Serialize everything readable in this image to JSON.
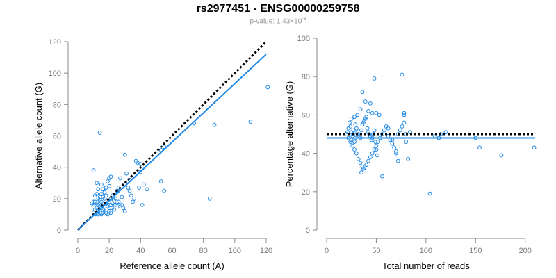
{
  "title": "rs2977451 - ENSG00000259758",
  "subtitle": {
    "prefix": "p-value: 1.43×10",
    "exponent": "-3"
  },
  "colors": {
    "point": "#1E88E5",
    "fit_line": "#1E88E5",
    "reference_line": "#000000",
    "axis": "#888888"
  },
  "chart_data": [
    {
      "type": "scatter",
      "xlabel": "Reference allele count (A)",
      "ylabel": "Alternative allele count (G)",
      "xlim": [
        0,
        120
      ],
      "ylim": [
        0,
        120
      ],
      "x_ticks": [
        0,
        20,
        40,
        60,
        80,
        100,
        120
      ],
      "y_ticks": [
        0,
        20,
        40,
        60,
        80,
        100,
        120
      ],
      "lines": [
        {
          "style": "dotted",
          "color": "#000000",
          "x": [
            0,
            120
          ],
          "y": [
            0,
            120
          ]
        },
        {
          "style": "solid",
          "color": "#1E88E5",
          "x": [
            0,
            120
          ],
          "y": [
            0,
            112
          ]
        }
      ],
      "points": [
        [
          14,
          62
        ],
        [
          10,
          38
        ],
        [
          121,
          91
        ],
        [
          110,
          69
        ],
        [
          87,
          67
        ],
        [
          84,
          20
        ],
        [
          74,
          68
        ],
        [
          55,
          53
        ],
        [
          53,
          51
        ],
        [
          55,
          25
        ],
        [
          53,
          31
        ],
        [
          41,
          16
        ],
        [
          40,
          42
        ],
        [
          40,
          37
        ],
        [
          38,
          43
        ],
        [
          37,
          44
        ],
        [
          42,
          29
        ],
        [
          39,
          27
        ],
        [
          44,
          26
        ],
        [
          30,
          48
        ],
        [
          31,
          36
        ],
        [
          33,
          32
        ],
        [
          30,
          29
        ],
        [
          32,
          27
        ],
        [
          27,
          33
        ],
        [
          26,
          27
        ],
        [
          25,
          25
        ],
        [
          28,
          21
        ],
        [
          24,
          22
        ],
        [
          20,
          33
        ],
        [
          21,
          34
        ],
        [
          19,
          31
        ],
        [
          20,
          28
        ],
        [
          18,
          27
        ],
        [
          17,
          24
        ],
        [
          16,
          21
        ],
        [
          15,
          23
        ],
        [
          16,
          26
        ],
        [
          14,
          21
        ],
        [
          13,
          20
        ],
        [
          12,
          23
        ],
        [
          11,
          22
        ],
        [
          11,
          18
        ],
        [
          12,
          17
        ],
        [
          13,
          16
        ],
        [
          14,
          15
        ],
        [
          15,
          14
        ],
        [
          16,
          13
        ],
        [
          17,
          12
        ],
        [
          18,
          11
        ],
        [
          19,
          10
        ],
        [
          20,
          12
        ],
        [
          21,
          11
        ],
        [
          22,
          14
        ],
        [
          23,
          13
        ],
        [
          24,
          16
        ],
        [
          22,
          17
        ],
        [
          21,
          16
        ],
        [
          20,
          18
        ],
        [
          19,
          19
        ],
        [
          18,
          17
        ],
        [
          17,
          15
        ],
        [
          16,
          17
        ],
        [
          15,
          18
        ],
        [
          14,
          19
        ],
        [
          13,
          12
        ],
        [
          12,
          14
        ],
        [
          11,
          13
        ],
        [
          10,
          15
        ],
        [
          10,
          11
        ],
        [
          11,
          10
        ],
        [
          12,
          11
        ],
        [
          13,
          10
        ],
        [
          14,
          11
        ],
        [
          15,
          10
        ],
        [
          16,
          11
        ],
        [
          9,
          17
        ],
        [
          10,
          18
        ],
        [
          21,
          20
        ],
        [
          22,
          22
        ],
        [
          23,
          19
        ],
        [
          24,
          20
        ],
        [
          25,
          17
        ],
        [
          26,
          18
        ],
        [
          27,
          15
        ],
        [
          28,
          16
        ],
        [
          29,
          14
        ],
        [
          30,
          12
        ],
        [
          35,
          18
        ],
        [
          36,
          20
        ],
        [
          33,
          25
        ],
        [
          34,
          22
        ],
        [
          18,
          22
        ],
        [
          17,
          20
        ],
        [
          19,
          15
        ],
        [
          20,
          14
        ],
        [
          13,
          26
        ],
        [
          15,
          29
        ],
        [
          12,
          30
        ]
      ]
    },
    {
      "type": "scatter",
      "xlabel": "Total number of reads",
      "ylabel": "Percentage alternative (G)",
      "xlim": [
        0,
        210
      ],
      "ylim": [
        0,
        100
      ],
      "x_ticks": [
        0,
        50,
        100,
        150,
        200
      ],
      "y_ticks": [
        0,
        20,
        40,
        60,
        80,
        100
      ],
      "lines": [
        {
          "style": "dotted",
          "color": "#000000",
          "x": [
            0,
            210
          ],
          "y": [
            50,
            50
          ]
        },
        {
          "style": "solid",
          "color": "#1E88E5",
          "x": [
            0,
            210
          ],
          "y": [
            48,
            48
          ]
        }
      ],
      "points": [
        [
          76,
          81
        ],
        [
          48,
          79
        ],
        [
          36,
          72
        ],
        [
          39,
          67
        ],
        [
          42,
          62
        ],
        [
          44,
          66
        ],
        [
          46,
          61
        ],
        [
          50,
          61
        ],
        [
          53,
          60
        ],
        [
          34,
          63
        ],
        [
          31,
          60
        ],
        [
          28,
          59
        ],
        [
          25,
          58
        ],
        [
          23,
          56
        ],
        [
          22,
          53
        ],
        [
          21,
          51
        ],
        [
          20,
          50
        ],
        [
          22,
          48
        ],
        [
          24,
          46
        ],
        [
          26,
          44
        ],
        [
          28,
          42
        ],
        [
          30,
          40
        ],
        [
          32,
          37
        ],
        [
          34,
          35
        ],
        [
          36,
          33
        ],
        [
          38,
          31
        ],
        [
          35,
          30
        ],
        [
          37,
          32
        ],
        [
          40,
          34
        ],
        [
          42,
          36
        ],
        [
          44,
          38
        ],
        [
          46,
          40
        ],
        [
          48,
          42
        ],
        [
          50,
          44
        ],
        [
          52,
          46
        ],
        [
          54,
          48
        ],
        [
          56,
          50
        ],
        [
          58,
          52
        ],
        [
          60,
          54
        ],
        [
          62,
          49
        ],
        [
          64,
          47
        ],
        [
          66,
          45
        ],
        [
          68,
          43
        ],
        [
          70,
          41
        ],
        [
          72,
          50
        ],
        [
          74,
          52
        ],
        [
          76,
          54
        ],
        [
          78,
          56
        ],
        [
          80,
          50
        ],
        [
          82,
          37
        ],
        [
          84,
          51
        ],
        [
          78,
          60
        ],
        [
          78,
          61
        ],
        [
          80,
          46
        ],
        [
          70,
          40
        ],
        [
          72,
          36
        ],
        [
          56,
          28
        ],
        [
          62,
          53
        ],
        [
          66,
          47
        ],
        [
          30,
          53
        ],
        [
          29,
          55
        ],
        [
          27,
          52
        ],
        [
          26,
          49
        ],
        [
          25,
          47
        ],
        [
          24,
          54
        ],
        [
          25,
          51
        ],
        [
          27,
          50
        ],
        [
          28,
          46
        ],
        [
          29,
          48
        ],
        [
          31,
          51
        ],
        [
          32,
          50
        ],
        [
          33,
          49
        ],
        [
          34,
          48
        ],
        [
          35,
          52
        ],
        [
          36,
          55
        ],
        [
          37,
          56
        ],
        [
          38,
          57
        ],
        [
          39,
          58
        ],
        [
          40,
          59
        ],
        [
          41,
          53
        ],
        [
          42,
          51
        ],
        [
          43,
          50
        ],
        [
          44,
          49
        ],
        [
          45,
          47
        ],
        [
          46,
          48
        ],
        [
          47,
          50
        ],
        [
          48,
          52
        ],
        [
          49,
          46
        ],
        [
          50,
          42
        ],
        [
          51,
          39
        ],
        [
          104,
          19
        ],
        [
          109,
          49
        ],
        [
          113,
          48
        ],
        [
          115,
          50
        ],
        [
          120,
          51
        ],
        [
          150,
          48
        ],
        [
          154,
          43
        ],
        [
          176,
          39
        ],
        [
          209,
          43
        ]
      ]
    }
  ]
}
